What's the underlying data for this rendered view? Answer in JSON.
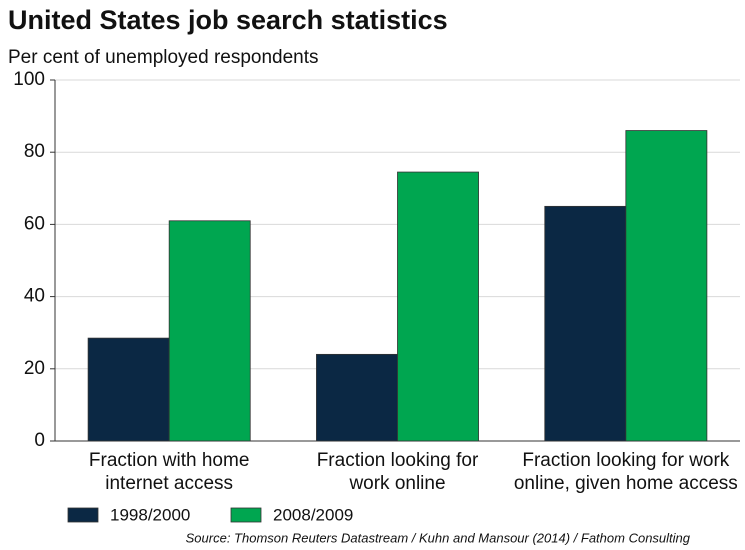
{
  "chart_data": {
    "type": "bar",
    "title": "United States job search statistics",
    "subtitle": "Per cent of unemployed respondents",
    "categories": [
      "Fraction with home internet access",
      "Fraction looking for work online",
      "Fraction looking for work online, given home access"
    ],
    "series": [
      {
        "name": "1998/2000",
        "color": "#0b2844",
        "values": [
          28.5,
          24,
          65
        ]
      },
      {
        "name": "2008/2009",
        "color": "#00a650",
        "values": [
          61,
          74.5,
          86
        ]
      }
    ],
    "ylim": [
      0,
      100
    ],
    "yticks": [
      0,
      20,
      40,
      60,
      80,
      100
    ],
    "grid": true,
    "source": "Source: Thomson Reuters Datastream / Kuhn and Mansour (2014) / Fathom Consulting"
  }
}
